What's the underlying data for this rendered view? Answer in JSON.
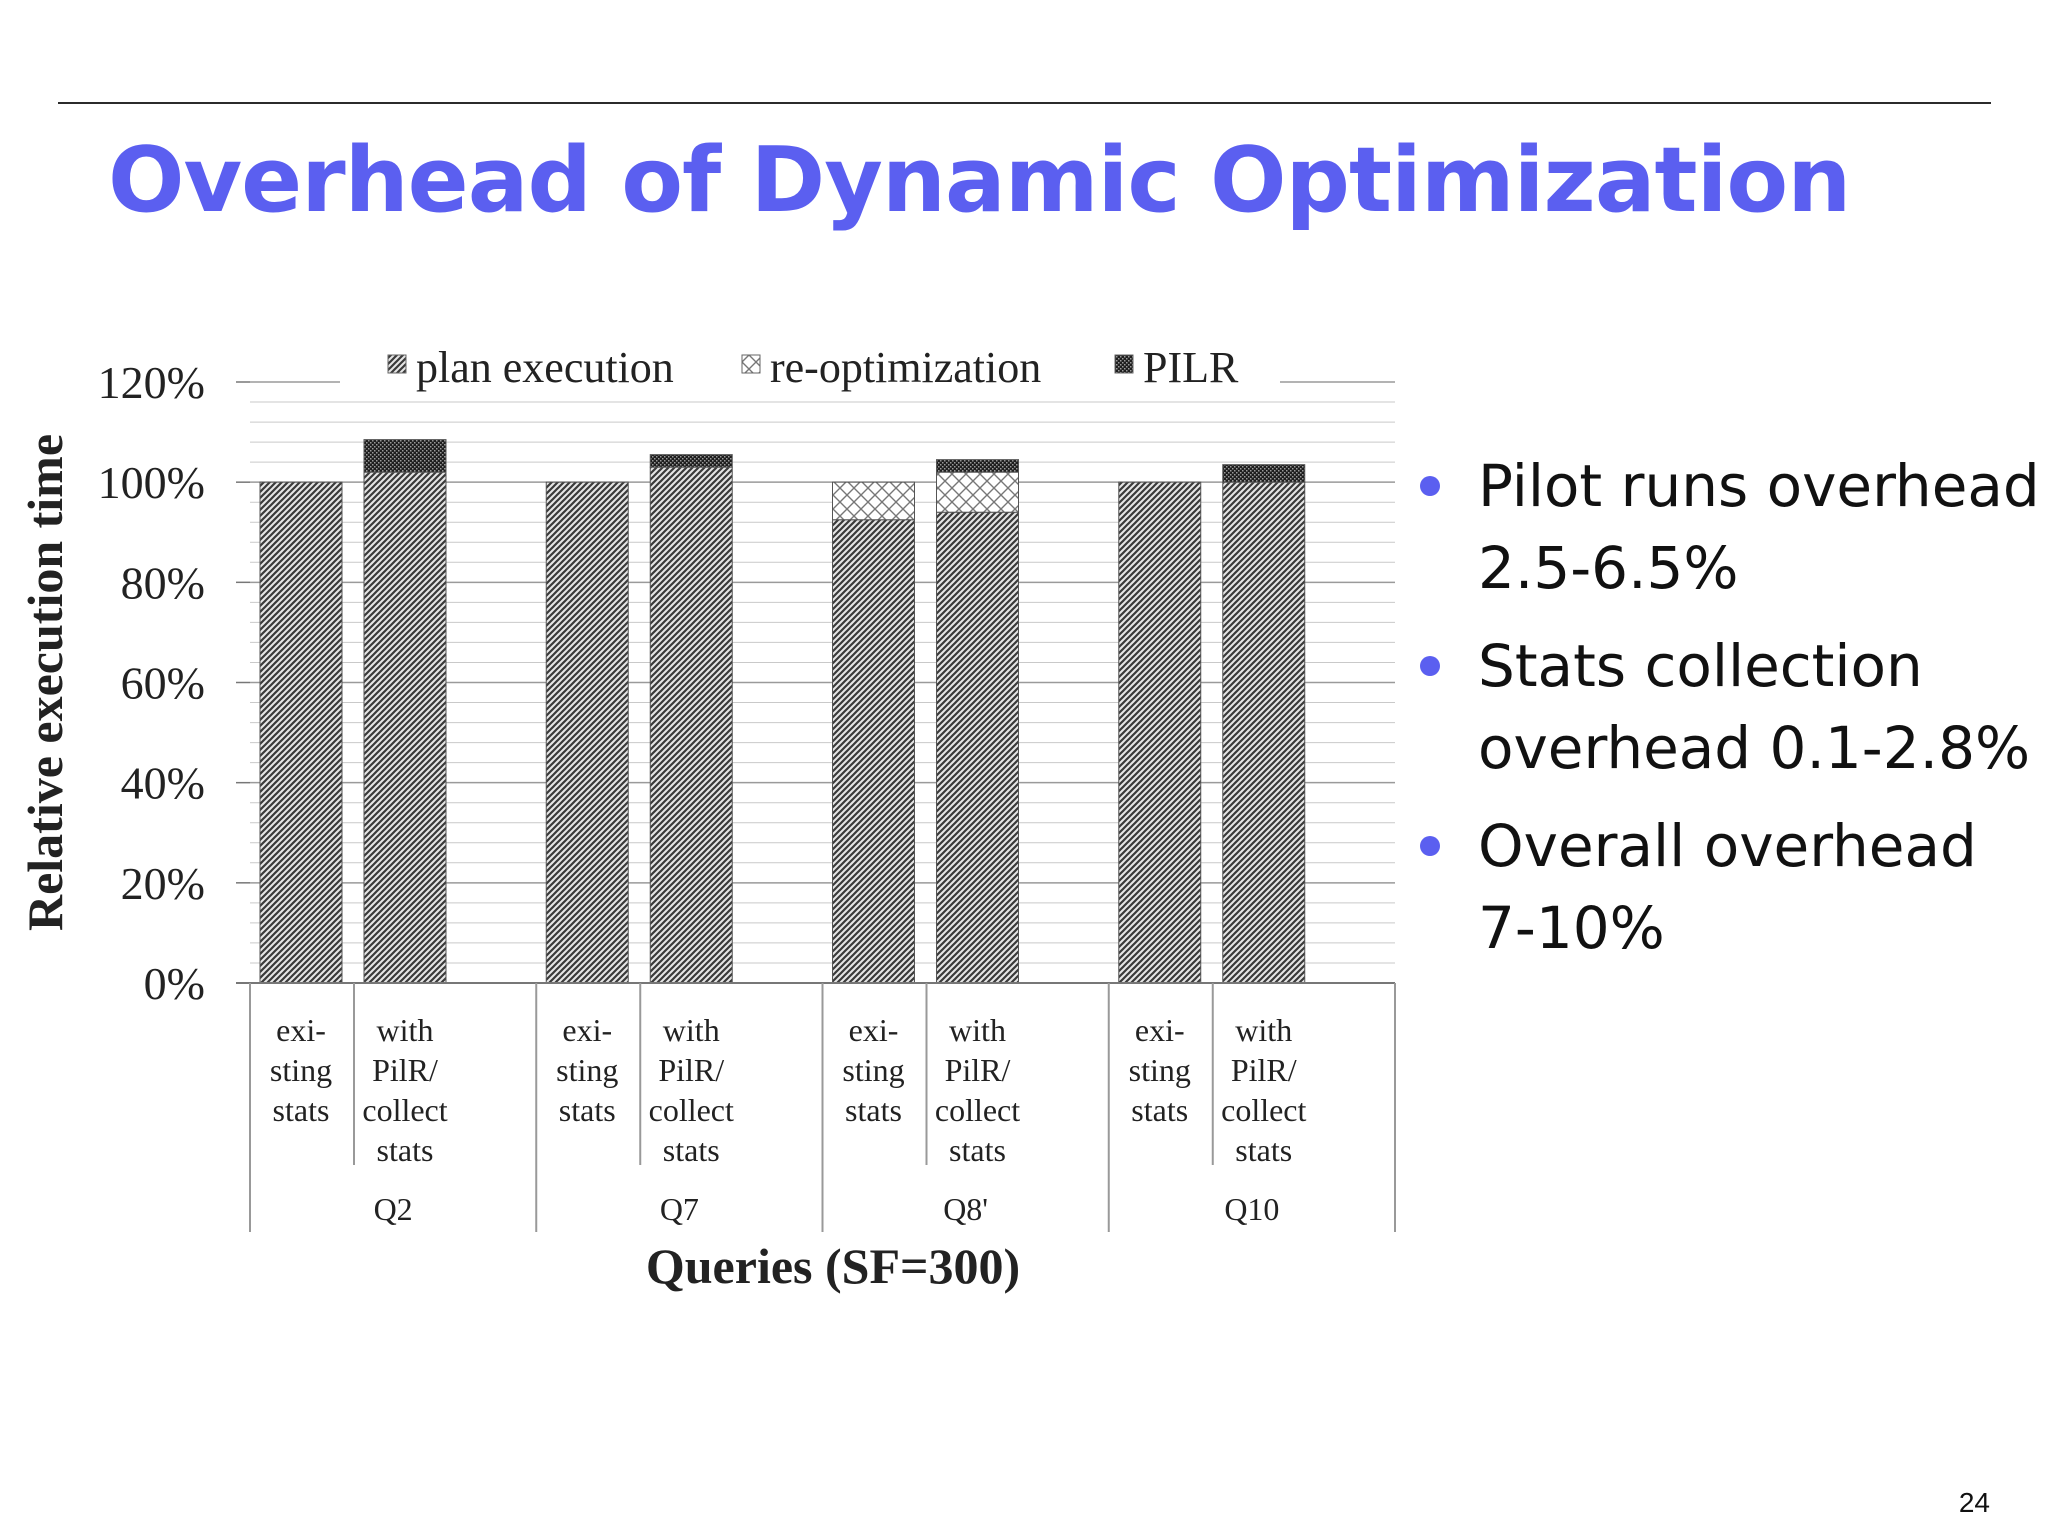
{
  "slide": {
    "title": "Overhead of Dynamic Optimization",
    "page_number": "24",
    "accent_color": "#5b5ff0"
  },
  "bullets": [
    "Pilot runs overhead 2.5-6.5%",
    "Stats collection overhead 0.1-2.8%",
    "Overall overhead 7-10%"
  ],
  "chart_data": {
    "type": "bar",
    "stacked": true,
    "title": "",
    "xlabel": "Queries (SF=300)",
    "ylabel": "Relative execution time",
    "ylim": [
      0,
      120
    ],
    "yticks": [
      "0%",
      "20%",
      "40%",
      "60%",
      "80%",
      "100%",
      "120%"
    ],
    "y_unit": "%",
    "legend_position": "top",
    "grid": true,
    "groups": [
      "Q2",
      "Q7",
      "Q8'",
      "Q10"
    ],
    "bar_labels": [
      "exi-|sting|stats",
      "with|PilR/|collect|stats"
    ],
    "categories": [
      "Q2 existing stats",
      "Q2 with PilR/collect stats",
      "Q7 existing stats",
      "Q7 with PilR/collect stats",
      "Q8' existing stats",
      "Q8' with PilR/collect stats",
      "Q10 existing stats",
      "Q10 with PilR/collect stats"
    ],
    "series": [
      {
        "name": "plan execution",
        "pattern": "diagonal-hatch",
        "values": [
          100,
          102,
          100,
          103,
          92.5,
          94,
          100,
          100
        ]
      },
      {
        "name": "re-optimization",
        "pattern": "crosshatch",
        "values": [
          0,
          0,
          0,
          0,
          7.5,
          8,
          0,
          0
        ]
      },
      {
        "name": "PILR",
        "pattern": "dense-dots",
        "values": [
          0,
          6.5,
          0,
          2.5,
          0,
          2.5,
          0,
          3.5
        ]
      }
    ]
  }
}
